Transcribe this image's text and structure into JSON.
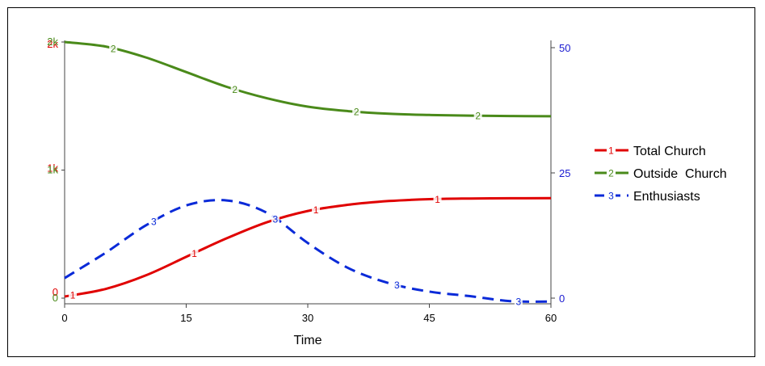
{
  "chart_data": {
    "type": "line",
    "xlabel": "Time",
    "x_ticks": [
      "0",
      "15",
      "30",
      "45",
      "60"
    ],
    "xlim": [
      0,
      60
    ],
    "left_axis": {
      "ticks": [
        {
          "value": 0,
          "label_red": "0",
          "label_green": "0"
        },
        {
          "value": 1000,
          "label_red": "1k",
          "label_green": "1k"
        },
        {
          "value": 2000,
          "label_red": "2k",
          "label_green": "2k"
        }
      ]
    },
    "right_axis": {
      "ylim": [
        0,
        50
      ],
      "ticks": [
        {
          "value": 0,
          "label": "0"
        },
        {
          "value": 25,
          "label": "25"
        },
        {
          "value": 50,
          "label": "50"
        }
      ]
    },
    "series": [
      {
        "name": "Total Church",
        "marker": "1",
        "color": "#e00000",
        "style": "solid",
        "axis": "left-red",
        "x": [
          0,
          5,
          10,
          15,
          20,
          25,
          30,
          35,
          40,
          45,
          50,
          55,
          60
        ],
        "y": [
          0,
          60,
          170,
          320,
          470,
          600,
          690,
          740,
          770,
          785,
          790,
          792,
          793
        ]
      },
      {
        "name": "Outside  Church",
        "marker": "2",
        "color": "#4a8a1a",
        "style": "solid",
        "axis": "left-green",
        "x": [
          0,
          5,
          10,
          15,
          20,
          25,
          30,
          35,
          40,
          45,
          50,
          55,
          60
        ],
        "y": [
          2000,
          1965,
          1880,
          1765,
          1650,
          1560,
          1495,
          1460,
          1440,
          1430,
          1425,
          1422,
          1420
        ]
      },
      {
        "name": "Enthusiasts",
        "marker": "3",
        "color": "#0a2ad8",
        "style": "dashed",
        "axis": "right",
        "x": [
          0,
          5,
          10,
          15,
          20,
          25,
          30,
          35,
          40,
          45,
          50,
          55,
          60
        ],
        "y": [
          4,
          9,
          14.5,
          18.5,
          19.5,
          17,
          11,
          6,
          3,
          1.3,
          0.4,
          -0.6,
          -0.7
        ]
      }
    ],
    "legend_position": "right",
    "grid": false
  }
}
